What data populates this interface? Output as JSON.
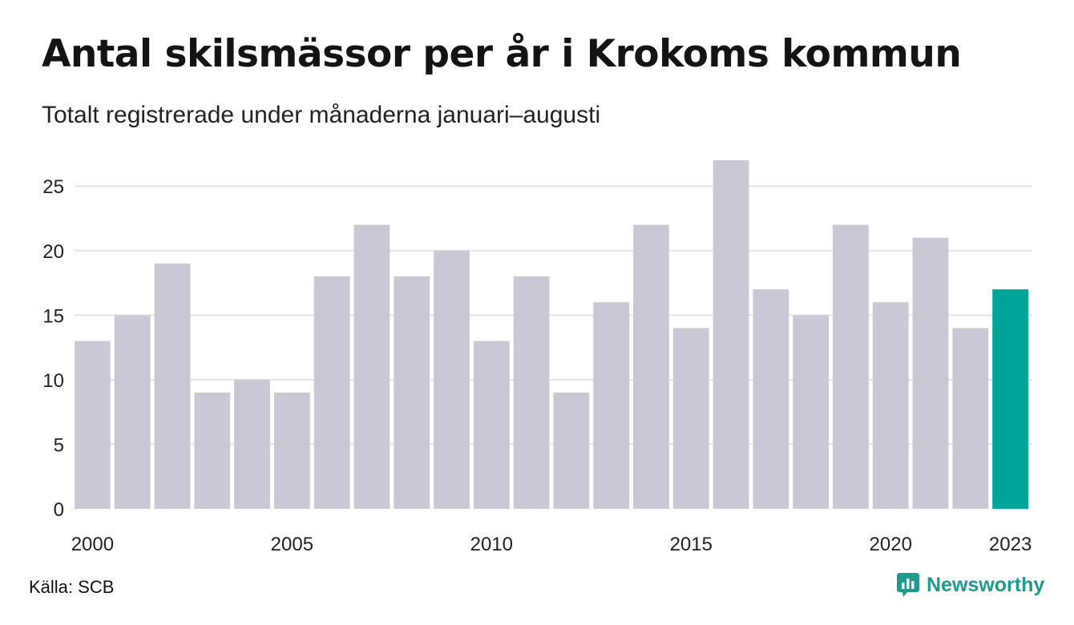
{
  "title": "Antal skilsmässor per år i Krokoms kommun",
  "subtitle": "Totalt registrerade under månaderna januari–augusti",
  "source": "Källa: SCB",
  "brand": {
    "name": "Newsworthy",
    "icon": "newsworthy-logo-icon"
  },
  "colors": {
    "bar": "#c9c8d4",
    "highlight": "#00a59a",
    "grid": "#e3e3e3",
    "brand": "#1f9a8c"
  },
  "chart_data": {
    "type": "bar",
    "categories": [
      2000,
      2001,
      2002,
      2003,
      2004,
      2005,
      2006,
      2007,
      2008,
      2009,
      2010,
      2011,
      2012,
      2013,
      2014,
      2015,
      2016,
      2017,
      2018,
      2019,
      2020,
      2021,
      2022,
      2023
    ],
    "values": [
      13,
      15,
      19,
      9,
      10,
      9,
      18,
      22,
      18,
      20,
      13,
      18,
      9,
      16,
      22,
      14,
      27,
      17,
      15,
      22,
      16,
      21,
      14,
      17
    ],
    "highlight_category": 2023,
    "x_tick_labels": [
      "2000",
      "2005",
      "2010",
      "2015",
      "2020",
      "2023"
    ],
    "y_ticks": [
      0,
      5,
      10,
      15,
      20,
      25
    ],
    "ylim": [
      0,
      27
    ],
    "grid": true,
    "xlabel": "",
    "ylabel": ""
  }
}
